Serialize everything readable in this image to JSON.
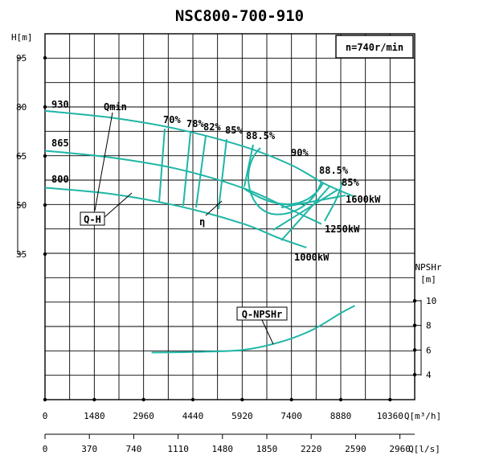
{
  "chart_data": {
    "type": "line",
    "title": "NSC800-700-910",
    "speed_label": "n=740r/min",
    "axes": {
      "left": {
        "label": "H[m]",
        "ticks": [
          "95",
          "80",
          "65",
          "50",
          "35"
        ],
        "range": [
          35,
          95
        ]
      },
      "right": {
        "label_line1": "NPSHr",
        "label_line2": "[m]",
        "ticks": [
          "10",
          "8",
          "6",
          "4"
        ],
        "range": [
          4,
          10
        ]
      },
      "bottom1": {
        "label": "Q[m³/h]",
        "ticks": [
          "0",
          "1480",
          "2960",
          "4440",
          "5920",
          "7400",
          "8880",
          "10360"
        ],
        "range": [
          0,
          11100
        ]
      },
      "bottom2": {
        "label": "Q[l/s]",
        "ticks": [
          "0",
          "370",
          "740",
          "1110",
          "1480",
          "1850",
          "2220",
          "2590",
          "2960"
        ],
        "range": [
          0,
          3083
        ]
      }
    },
    "grid": true,
    "series": [
      {
        "name": "930",
        "values": [
          [
            0,
            78.8
          ],
          [
            2000,
            76.7
          ],
          [
            4000,
            73.2
          ],
          [
            6000,
            67.8
          ],
          [
            7400,
            62.2
          ],
          [
            8400,
            56.5
          ],
          [
            9300,
            52.5
          ]
        ]
      },
      {
        "name": "865",
        "values": [
          [
            0,
            66.6
          ],
          [
            2000,
            64.5
          ],
          [
            4000,
            61.0
          ],
          [
            6000,
            55.0
          ],
          [
            7400,
            48.5
          ],
          [
            8300,
            44.2
          ]
        ]
      },
      {
        "name": "800",
        "values": [
          [
            0,
            55.3
          ],
          [
            2000,
            53.4
          ],
          [
            4000,
            49.7
          ],
          [
            5920,
            44.4
          ],
          [
            7000,
            40.0
          ],
          [
            7850,
            37.0
          ]
        ]
      },
      {
        "name": "Q-NPSHr",
        "values": [
          [
            3200,
            5.8
          ],
          [
            4500,
            5.85
          ],
          [
            5920,
            6.0
          ],
          [
            7000,
            6.6
          ],
          [
            8000,
            7.6
          ],
          [
            8880,
            9.0
          ],
          [
            9300,
            9.6
          ]
        ]
      }
    ],
    "efficiency_labels": [
      "70%",
      "78%",
      "82%",
      "85%",
      "88.5%",
      "90%",
      "88.5%",
      "85%"
    ],
    "power_labels": [
      "1600kW",
      "1250kW",
      "1000kW"
    ],
    "annotations": [
      "Qmin",
      "Q-H",
      "η",
      "Q-NPSHr"
    ]
  }
}
